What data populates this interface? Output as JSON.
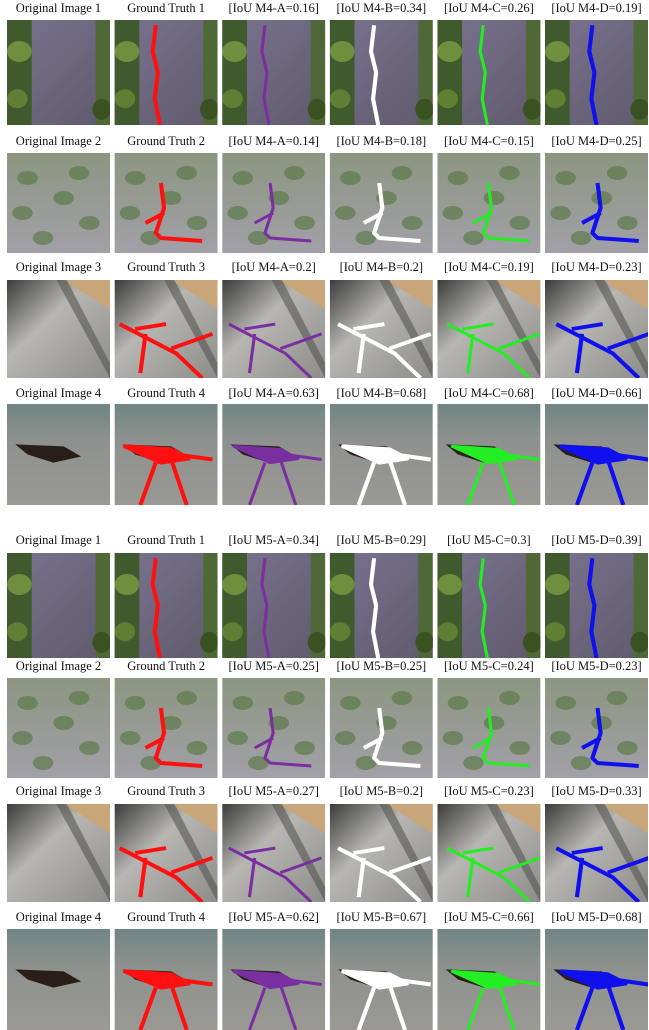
{
  "figures": [
    {
      "rows": [
        {
          "captions": [
            "Original Image 1",
            "Ground Truth 1",
            "[IoU M4-A=0.16]",
            "[IoU M4-B=0.34]",
            "[IoU M4-C=0.26]",
            "[IoU M4-D=0.19]"
          ]
        },
        {
          "captions": [
            "Original Image 2",
            "Ground Truth 2",
            "[IoU M4-A=0.14]",
            "[IoU M4-B=0.18]",
            "[IoU M4-C=0.15]",
            "[IoU M4-D=0.25]"
          ]
        },
        {
          "captions": [
            "Original Image 3",
            "Ground Truth 3",
            "[IoU M4-A=0.2]",
            "[IoU M4-B=0.2]",
            "[IoU M4-C=0.19]",
            "[IoU M4-D=0.23]"
          ]
        },
        {
          "captions": [
            "Original Image 4",
            "Ground Truth 4",
            "[IoU M4-A=0.63]",
            "[IoU M4-B=0.68]",
            "[IoU M4-C=0.68]",
            "[IoU M4-D=0.66]"
          ]
        }
      ]
    },
    {
      "rows": [
        {
          "captions": [
            "Original Image 1",
            "Ground Truth 1",
            "[IoU M5-A=0.34]",
            "[IoU M5-B=0.29]",
            "[IoU M5-C=0.3]",
            "[IoU M5-D=0.39]"
          ]
        },
        {
          "captions": [
            "Original Image 2",
            "Ground Truth 2",
            "[IoU M5-A=0.25]",
            "[IoU M5-B=0.25]",
            "[IoU M5-C=0.24]",
            "[IoU M5-D=0.23]"
          ]
        },
        {
          "captions": [
            "Original Image 3",
            "Ground Truth 3",
            "[IoU M5-A=0.27]",
            "[IoU M5-B=0.2]",
            "[IoU M5-C=0.23]",
            "[IoU M5-D=0.33]"
          ]
        },
        {
          "captions": [
            "Original Image 4",
            "Ground Truth 4",
            "[IoU M5-A=0.62]",
            "[IoU M5-B=0.67]",
            "[IoU M5-C=0.66]",
            "[IoU M5-D=0.68]"
          ]
        }
      ]
    }
  ]
}
